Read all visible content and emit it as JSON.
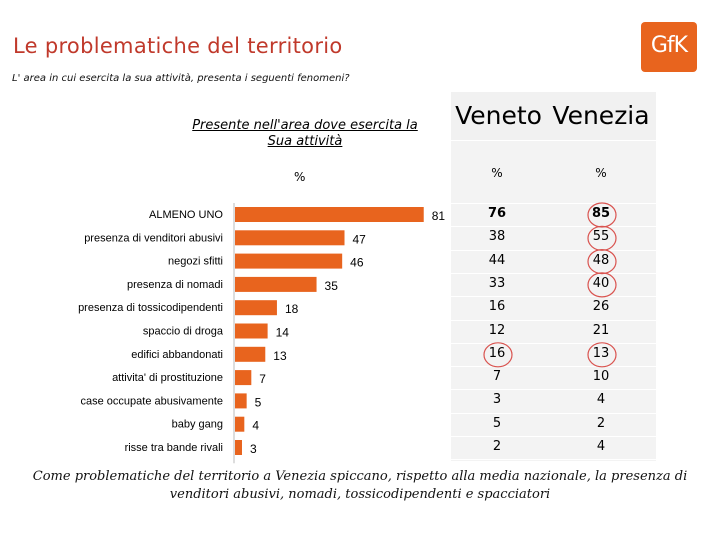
{
  "slide": {
    "title": "Le  problematiche del territorio",
    "subtitle": "L' area in cui esercita la sua attività, presenta i seguenti fenomeni?",
    "logo_text": "GfK",
    "footer": "Come problematiche del territorio a Venezia spiccano, rispetto alla media nazionale, la presenza di venditori abusivi, nomadi, tossicodipendenti e spacciatori"
  },
  "chart_data": {
    "type": "bar",
    "orientation": "horizontal",
    "title": "Presente nell'area dove esercita la Sua attività",
    "unit_label": "%",
    "categories": [
      "ALMENO UNO",
      "presenza di venditori abusivi",
      "negozi sfitti",
      "presenza di nomadi",
      "presenza di tossicodipendenti",
      "spaccio di droga",
      "edifici abbandonati",
      "attivita' di prostituzione",
      "case occupate abusivamente",
      "baby gang",
      "risse tra bande rivali"
    ],
    "values": [
      81,
      47,
      46,
      35,
      18,
      14,
      13,
      7,
      5,
      4,
      3
    ],
    "xlim": [
      0,
      100
    ],
    "bar_color": "#e8641e"
  },
  "table": {
    "columns": [
      {
        "name": "Veneto",
        "unit": "%",
        "values": [
          "76",
          "38",
          "44",
          "33",
          "16",
          "12",
          "16",
          "7",
          "3",
          "5",
          "2"
        ]
      },
      {
        "name": "Venezia",
        "unit": "%",
        "values": [
          "85",
          "55",
          "48",
          "40",
          "26",
          "21",
          "13",
          "10",
          "4",
          "2",
          "4"
        ]
      }
    ],
    "highlight_color": "#d9534f",
    "highlights": {
      "Veneto": [
        6
      ],
      "Venezia": [
        0,
        1,
        2,
        3,
        6
      ]
    }
  }
}
